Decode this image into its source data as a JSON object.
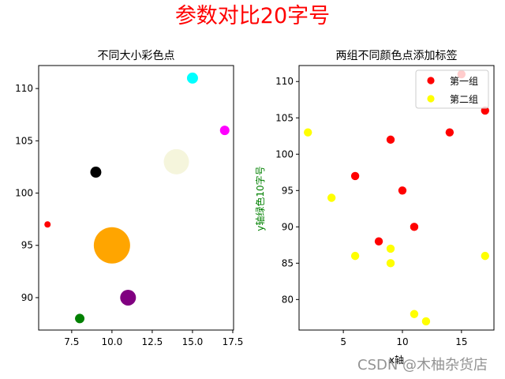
{
  "figure": {
    "suptitle": "参数对比20字号",
    "suptitle_color": "#ff0000",
    "watermark": "CSDN @木柚杂货店"
  },
  "chart_data": [
    {
      "type": "scatter",
      "title": "不同大小彩色点",
      "xlabel": "",
      "ylabel": "",
      "xlim": [
        5.45,
        17.55
      ],
      "ylim": [
        86.9,
        112.2
      ],
      "xticks": [
        7.5,
        10.0,
        12.5,
        15.0,
        17.5
      ],
      "xtick_labels": [
        "7.5",
        "10.0",
        "12.5",
        "15.0",
        "17.5"
      ],
      "yticks": [
        90,
        95,
        100,
        105,
        110
      ],
      "ytick_labels": [
        "90",
        "95",
        "100",
        "105",
        "110"
      ],
      "grid": false,
      "points": [
        {
          "x": 6,
          "y": 97,
          "color": "#ff0000",
          "size": 4
        },
        {
          "x": 8,
          "y": 88,
          "color": "#008000",
          "size": 6
        },
        {
          "x": 9,
          "y": 102,
          "color": "#000000",
          "size": 7
        },
        {
          "x": 10,
          "y": 95,
          "color": "#ffa500",
          "size": 23
        },
        {
          "x": 11,
          "y": 90,
          "color": "#800080",
          "size": 10
        },
        {
          "x": 14,
          "y": 103,
          "color": "#f5f5dc",
          "size": 16
        },
        {
          "x": 15,
          "y": 111,
          "color": "#00ffff",
          "size": 7
        },
        {
          "x": 17,
          "y": 106,
          "color": "#ff00ff",
          "size": 6
        }
      ]
    },
    {
      "type": "scatter",
      "title": "两组不同颜色点添加标签",
      "xlabel": "x轴",
      "ylabel": "y轴绿色10字号",
      "ylabel_color": "#008000",
      "xlim": [
        1.25,
        17.75
      ],
      "ylim": [
        75.8,
        112.2
      ],
      "xticks": [
        5,
        10,
        15
      ],
      "xtick_labels": [
        "5",
        "10",
        "15"
      ],
      "yticks": [
        80,
        85,
        90,
        95,
        100,
        105,
        110
      ],
      "ytick_labels": [
        "80",
        "85",
        "90",
        "95",
        "100",
        "105",
        "110"
      ],
      "grid": false,
      "legend": {
        "position": "upper right",
        "entries": [
          "第一组",
          "第二组"
        ]
      },
      "series": [
        {
          "name": "第一组",
          "color": "#ff0000",
          "x": [
            6,
            8,
            9,
            10,
            11,
            14,
            15,
            17
          ],
          "y": [
            97,
            88,
            102,
            95,
            90,
            103,
            111,
            106
          ]
        },
        {
          "name": "第二组",
          "color": "#ffff00",
          "x": [
            2,
            4,
            6,
            9,
            9,
            11,
            12,
            17
          ],
          "y": [
            103,
            94,
            86,
            87,
            85,
            78,
            77,
            86
          ]
        }
      ]
    }
  ]
}
